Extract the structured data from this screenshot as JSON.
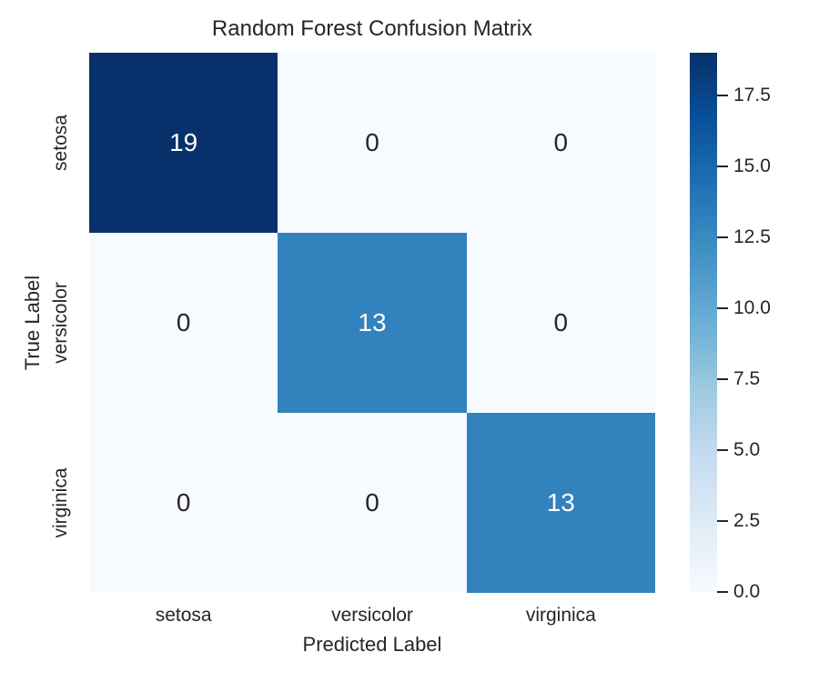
{
  "figure": {
    "title": "Random Forest Confusion Matrix",
    "xlabel": "Predicted Label",
    "ylabel": "True Label"
  },
  "colors": {
    "background": "#ffffff",
    "text": "#262626",
    "cell_max": "#08306b",
    "cell_mid": "#3282bd",
    "cell_min": "#f7fbff",
    "annotation_light": "#ffffff",
    "annotation_dark": "#262626"
  },
  "chart_data": {
    "type": "heatmap",
    "title": "Random Forest Confusion Matrix",
    "xlabel": "Predicted Label",
    "ylabel": "True Label",
    "x_categories": [
      "setosa",
      "versicolor",
      "virginica"
    ],
    "y_categories": [
      "setosa",
      "versicolor",
      "virginica"
    ],
    "matrix": [
      [
        19,
        0,
        0
      ],
      [
        0,
        13,
        0
      ],
      [
        0,
        0,
        13
      ]
    ],
    "vmin": 0,
    "vmax": 19,
    "colormap": "Blues",
    "grid": false,
    "legend_position": "right-colorbar",
    "colorbar_ticks": [
      {
        "value": 17.5,
        "label": "17.5"
      },
      {
        "value": 15.0,
        "label": "15.0"
      },
      {
        "value": 12.5,
        "label": "12.5"
      },
      {
        "value": 10.0,
        "label": "10.0"
      },
      {
        "value": 7.5,
        "label": "7.5"
      },
      {
        "value": 5.0,
        "label": "5.0"
      },
      {
        "value": 2.5,
        "label": "2.5"
      },
      {
        "value": 0.0,
        "label": "0.0"
      }
    ],
    "gradient_stops": [
      "#f7fbff",
      "#deebf7",
      "#c6dbef",
      "#9ecae1",
      "#6baed6",
      "#4292c6",
      "#2171b5",
      "#08519c",
      "#08306b"
    ],
    "cells": [
      {
        "row": "setosa",
        "col": "setosa",
        "value": "19",
        "bg": "#08306b",
        "fg": "#ffffff"
      },
      {
        "row": "setosa",
        "col": "versicolor",
        "value": "0",
        "bg": "#f7fbff",
        "fg": "#262626"
      },
      {
        "row": "setosa",
        "col": "virginica",
        "value": "0",
        "bg": "#f7fbff",
        "fg": "#262626"
      },
      {
        "row": "versicolor",
        "col": "setosa",
        "value": "0",
        "bg": "#f7fbff",
        "fg": "#262626"
      },
      {
        "row": "versicolor",
        "col": "versicolor",
        "value": "13",
        "bg": "#3282bd",
        "fg": "#ffffff"
      },
      {
        "row": "versicolor",
        "col": "virginica",
        "value": "0",
        "bg": "#f7fbff",
        "fg": "#262626"
      },
      {
        "row": "virginica",
        "col": "setosa",
        "value": "0",
        "bg": "#f7fbff",
        "fg": "#262626"
      },
      {
        "row": "virginica",
        "col": "versicolor",
        "value": "0",
        "bg": "#f7fbff",
        "fg": "#262626"
      },
      {
        "row": "virginica",
        "col": "virginica",
        "value": "13",
        "bg": "#3282bd",
        "fg": "#ffffff"
      }
    ]
  }
}
